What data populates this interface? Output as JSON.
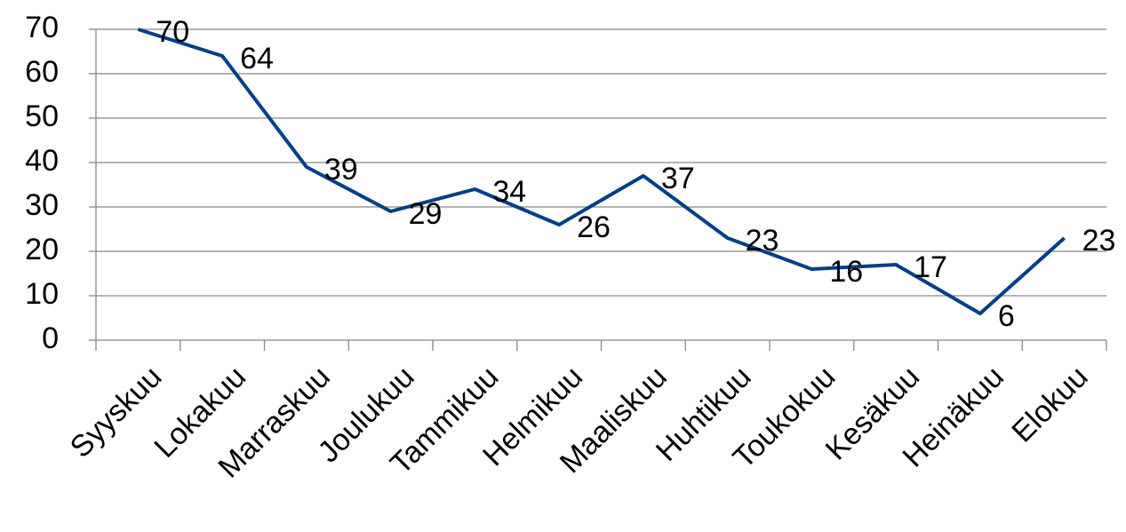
{
  "chart_data": {
    "type": "line",
    "categories": [
      "Syyskuu",
      "Lokakuu",
      "Marraskuu",
      "Joulukuu",
      "Tammikuu",
      "Helmikuu",
      "Maaliskuu",
      "Huhtikuu",
      "Toukokuu",
      "Kesäkuu",
      "Heinäkuu",
      "Elokuu"
    ],
    "values": [
      70,
      64,
      39,
      29,
      34,
      26,
      37,
      23,
      16,
      17,
      6,
      23
    ],
    "color": "#003f87",
    "ylim": [
      0,
      70
    ],
    "yticks": [
      0,
      10,
      20,
      30,
      40,
      50,
      60,
      70
    ],
    "grid": true
  }
}
